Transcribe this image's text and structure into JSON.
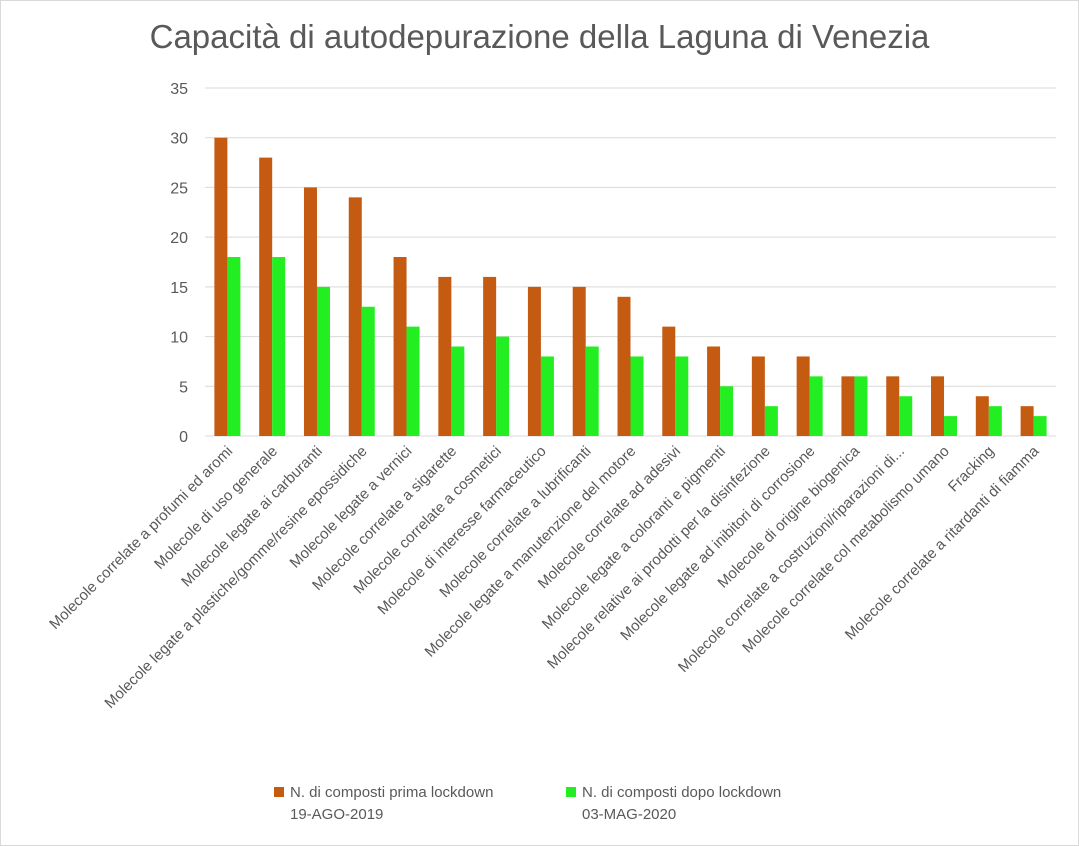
{
  "chart_data": {
    "type": "bar",
    "title": "Capacità di autodepurazione della Laguna di Venezia",
    "xlabel": "",
    "ylabel": "",
    "ylim": [
      0,
      35
    ],
    "yticks": [
      0,
      5,
      10,
      15,
      20,
      25,
      30,
      35
    ],
    "grid": true,
    "legend_position": "bottom",
    "categories": [
      "Molecole correlate a profumi ed aromi",
      "Molecole di uso generale",
      "Molecole legate ai carburanti",
      "Molecole legate a plastiche/gomme/resine epossidiche",
      "Molecole legate a vernici",
      "Molecole correlate a sigarette",
      "Molecole correlate a cosmetici",
      "Molecole di interesse farmaceutico",
      "Molecole correlate a lubrificanti",
      "Molecole legate a manutenzione del motore",
      "Molecole correlate ad adesivi",
      "Molecole legate a coloranti e pigmenti",
      "Molecole relative ai prodotti per la disinfezione",
      "Molecole legate ad inibitori di corrosione",
      "Molecole di origine biogenica",
      "Molecole correlate a costruzioni/riparazioni di...",
      "Molecole correlate col metabolismo umano",
      "Fracking",
      "Molecole correlate a ritardanti di fiamma"
    ],
    "series": [
      {
        "name": "N. di composti prima lockdown 19-AGO-2019",
        "legend_line1": "N. di composti prima lockdown",
        "legend_line2": "19-AGO-2019",
        "color": "#c55a11",
        "values": [
          30,
          28,
          25,
          24,
          18,
          16,
          16,
          15,
          15,
          14,
          11,
          9,
          8,
          8,
          6,
          6,
          6,
          4,
          3
        ]
      },
      {
        "name": "N. di composti dopo lockdown 03-MAG-2020",
        "legend_line1": "N. di composti dopo lockdown",
        "legend_line2": "03-MAG-2020",
        "color": "#22ee22",
        "values": [
          18,
          18,
          15,
          13,
          11,
          9,
          10,
          8,
          9,
          8,
          8,
          5,
          3,
          6,
          6,
          4,
          2,
          3,
          2
        ]
      }
    ]
  }
}
